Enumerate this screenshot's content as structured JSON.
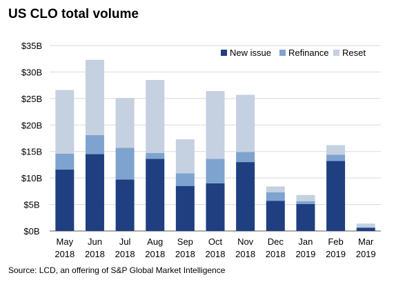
{
  "title": "US CLO total volume",
  "source": "Source: LCD, an offering of S&P Global Market Intelligence",
  "chart_data": {
    "type": "bar",
    "stacked": true,
    "categories": [
      {
        "month": "May",
        "year": "2018"
      },
      {
        "month": "Jun",
        "year": "2018"
      },
      {
        "month": "Jul",
        "year": "2018"
      },
      {
        "month": "Aug",
        "year": "2018"
      },
      {
        "month": "Sep",
        "year": "2018"
      },
      {
        "month": "Oct",
        "year": "2018"
      },
      {
        "month": "Nov",
        "year": "2018"
      },
      {
        "month": "Dec",
        "year": "2018"
      },
      {
        "month": "Jan",
        "year": "2019"
      },
      {
        "month": "Feb",
        "year": "2019"
      },
      {
        "month": "Mar",
        "year": "2019"
      }
    ],
    "series": [
      {
        "name": "New issue",
        "color": "#1f3f80",
        "values": [
          11.6,
          14.5,
          9.7,
          13.6,
          8.5,
          9.0,
          13.0,
          5.7,
          5.1,
          13.2,
          0.6
        ]
      },
      {
        "name": "Refinance",
        "color": "#7ea3cf",
        "values": [
          3.0,
          3.6,
          6.0,
          1.1,
          2.4,
          4.6,
          1.9,
          1.6,
          0.5,
          1.2,
          0.1
        ]
      },
      {
        "name": "Reset",
        "color": "#c5d0e1",
        "values": [
          12.0,
          14.2,
          9.4,
          13.8,
          6.4,
          12.8,
          10.8,
          1.1,
          1.2,
          1.8,
          0.7
        ]
      }
    ],
    "ylim": [
      0,
      35
    ],
    "yticks": [
      "$0B",
      "$5B",
      "$10B",
      "$15B",
      "$20B",
      "$25B",
      "$30B",
      "$35B"
    ],
    "grid": true,
    "legend_position": "top-right"
  }
}
